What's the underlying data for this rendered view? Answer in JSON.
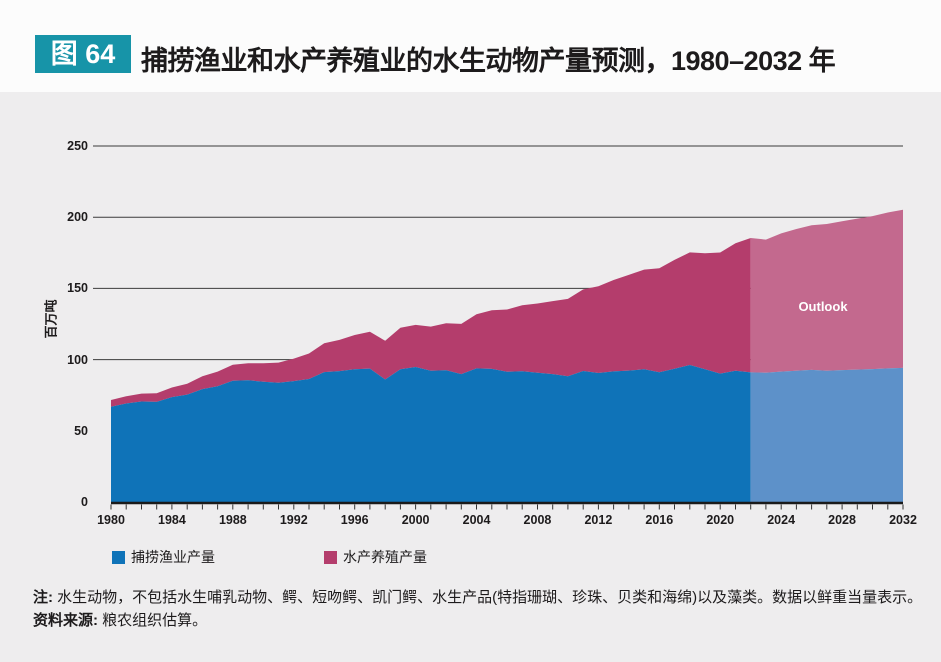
{
  "header": {
    "badge_label": "图 64",
    "title": "捕捞渔业和水产养殖业的水生动物产量预测，1980–2032 年"
  },
  "colors": {
    "page_background": "#eeedee",
    "header_background": "#fcfcfc",
    "badge": "#1794a8",
    "text": "#1d1b1c",
    "axis": "#1a1a1a",
    "gridline": "#3b3b3b",
    "capture_historical": "#0f73b8",
    "capture_outlook": "#5d91c9",
    "aquaculture_historical": "#b43d6c",
    "aquaculture_outlook": "#c3698e"
  },
  "chart_data": {
    "type": "area",
    "stacked": true,
    "title": "捕捞渔业和水产养殖业的水生动物产量预测，1980–2032 年",
    "xlabel": "",
    "ylabel": "百万吨",
    "ylim": [
      0,
      250
    ],
    "yticks": [
      0,
      50,
      100,
      150,
      200,
      250
    ],
    "gridlines": [
      100,
      150,
      200,
      250
    ],
    "x_range": [
      1980,
      2032
    ],
    "xtick_labels": [
      1980,
      1984,
      1988,
      1992,
      1996,
      2000,
      2004,
      2008,
      2012,
      2016,
      2020,
      2024,
      2028,
      2032
    ],
    "grid": true,
    "legend_position": "bottom",
    "split_year": 2022,
    "outlook_from_year": 2023,
    "outlook_label": "Outlook",
    "years": [
      1980,
      1981,
      1982,
      1983,
      1984,
      1985,
      1986,
      1987,
      1988,
      1989,
      1990,
      1991,
      1992,
      1993,
      1994,
      1995,
      1996,
      1997,
      1998,
      1999,
      2000,
      2001,
      2002,
      2003,
      2004,
      2005,
      2006,
      2007,
      2008,
      2009,
      2010,
      2011,
      2012,
      2013,
      2014,
      2015,
      2016,
      2017,
      2018,
      2019,
      2020,
      2021,
      2022,
      2023,
      2024,
      2025,
      2026,
      2027,
      2028,
      2029,
      2030,
      2031,
      2032
    ],
    "series": [
      {
        "name": "捕捞渔业产量",
        "color_historical": "#0f73b8",
        "color_outlook": "#5d91c9",
        "values": [
          66.9,
          69.2,
          70.6,
          70.3,
          73.7,
          75.4,
          79.3,
          81.3,
          85.2,
          85.5,
          84.4,
          83.7,
          84.9,
          86.4,
          91.2,
          91.9,
          93.2,
          93.7,
          86.0,
          93.2,
          94.8,
          92.1,
          92.5,
          89.8,
          93.8,
          93.5,
          91.4,
          91.8,
          90.7,
          89.8,
          88.3,
          92.0,
          90.6,
          91.7,
          92.3,
          93.2,
          91.1,
          93.6,
          96.2,
          93.2,
          90.2,
          92.1,
          91.0,
          90.8,
          91.6,
          92.2,
          92.8,
          92.2,
          92.6,
          93.0,
          93.3,
          93.8,
          94.2
        ]
      },
      {
        "name": "水产养殖产量",
        "color_historical": "#b43d6c",
        "color_outlook": "#c3698e",
        "values": [
          4.7,
          5.0,
          5.5,
          6.1,
          6.7,
          7.7,
          9.0,
          10.3,
          11.2,
          11.9,
          13.1,
          14.2,
          15.8,
          17.9,
          20.3,
          21.9,
          24.1,
          25.8,
          27.2,
          29.1,
          29.6,
          31.1,
          33.0,
          35.3,
          38.0,
          41.2,
          43.8,
          46.3,
          48.7,
          51.3,
          54.3,
          57.3,
          60.9,
          64.2,
          67.2,
          70.0,
          73.0,
          76.4,
          79.1,
          81.5,
          85.0,
          89.6,
          94.4,
          93.5,
          97.0,
          99.5,
          101.5,
          103.0,
          104.5,
          106.0,
          107.5,
          109.5,
          111.0
        ]
      }
    ]
  },
  "legend": {
    "items": [
      {
        "label": "捕捞渔业产量",
        "color": "#0f73b8"
      },
      {
        "label": "水产养殖产量",
        "color": "#b43d6c"
      }
    ]
  },
  "notes": {
    "note_label": "注:",
    "note_text": " 水生动物，不包括水生哺乳动物、鳄、短吻鳄、凯门鳄、水生产品(特指珊瑚、珍珠、贝类和海绵)以及藻类。数据以鲜重当量表示。",
    "source_label": "资料来源:",
    "source_text": " 粮农组织估算。"
  }
}
